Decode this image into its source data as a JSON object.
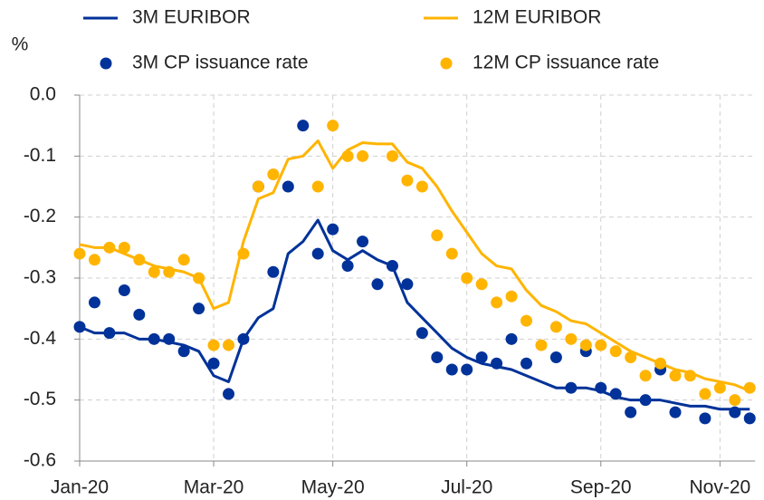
{
  "chart_data": {
    "type": "line",
    "ylabel": "%",
    "categories": [
      "Jan-20",
      null,
      null,
      null,
      null,
      null,
      null,
      null,
      null,
      "Mar-20",
      null,
      null,
      null,
      null,
      null,
      null,
      null,
      "May-20",
      null,
      null,
      null,
      null,
      null,
      null,
      null,
      null,
      "Jul-20",
      null,
      null,
      null,
      null,
      null,
      null,
      null,
      null,
      "Sep-20",
      null,
      null,
      null,
      null,
      null,
      null,
      null,
      "Nov-20",
      null,
      null
    ],
    "ylim": [
      -0.6,
      0
    ],
    "yticks": [
      {
        "value": 0,
        "label": "0.0"
      },
      -0.1,
      -0.2,
      -0.3,
      -0.4,
      -0.5,
      -0.6
    ],
    "grid": true,
    "series": [
      {
        "name": "3M EURIBOR",
        "type": "line",
        "color": "#003299",
        "values": [
          -0.38,
          -0.39,
          -0.39,
          -0.39,
          -0.4,
          -0.4,
          -0.405,
          -0.41,
          -0.42,
          -0.46,
          -0.47,
          -0.4,
          -0.365,
          -0.35,
          -0.26,
          -0.24,
          -0.205,
          -0.255,
          -0.27,
          -0.255,
          -0.27,
          -0.28,
          -0.34,
          -0.365,
          -0.39,
          -0.415,
          -0.43,
          -0.44,
          -0.445,
          -0.45,
          -0.46,
          -0.47,
          -0.48,
          -0.48,
          -0.48,
          -0.485,
          -0.495,
          -0.5,
          -0.5,
          -0.5,
          -0.505,
          -0.51,
          -0.51,
          -0.515,
          -0.515,
          -0.515
        ]
      },
      {
        "name": "12M EURIBOR",
        "type": "line",
        "color": "#ffb400",
        "values": [
          -0.245,
          -0.25,
          -0.25,
          -0.26,
          -0.27,
          -0.28,
          -0.285,
          -0.29,
          -0.3,
          -0.35,
          -0.34,
          -0.24,
          -0.17,
          -0.16,
          -0.105,
          -0.1,
          -0.075,
          -0.12,
          -0.09,
          -0.078,
          -0.08,
          -0.08,
          -0.11,
          -0.12,
          -0.15,
          -0.19,
          -0.225,
          -0.26,
          -0.28,
          -0.285,
          -0.32,
          -0.345,
          -0.355,
          -0.37,
          -0.375,
          -0.39,
          -0.405,
          -0.42,
          -0.43,
          -0.44,
          -0.45,
          -0.455,
          -0.465,
          -0.47,
          -0.475,
          -0.485
        ]
      },
      {
        "name": "3M CP issuance rate",
        "type": "scatter",
        "color": "#003299",
        "values": [
          -0.38,
          -0.34,
          -0.39,
          -0.32,
          -0.36,
          -0.4,
          -0.4,
          -0.42,
          -0.35,
          -0.44,
          -0.49,
          -0.4,
          -0.15,
          -0.29,
          -0.15,
          -0.05,
          -0.26,
          -0.22,
          -0.28,
          -0.24,
          -0.31,
          -0.28,
          -0.31,
          -0.39,
          -0.43,
          -0.45,
          -0.45,
          -0.43,
          -0.44,
          -0.4,
          -0.44,
          null,
          -0.43,
          -0.48,
          -0.42,
          -0.48,
          -0.49,
          -0.52,
          -0.5,
          -0.45,
          -0.52,
          null,
          -0.53,
          null,
          -0.52,
          -0.53
        ]
      },
      {
        "name": "12M CP issuance rate",
        "type": "scatter",
        "color": "#ffb400",
        "values": [
          -0.26,
          -0.27,
          -0.25,
          -0.25,
          -0.27,
          -0.29,
          -0.29,
          -0.27,
          -0.3,
          -0.41,
          -0.41,
          -0.26,
          -0.15,
          -0.13,
          null,
          null,
          -0.15,
          -0.05,
          -0.1,
          -0.1,
          null,
          -0.1,
          -0.14,
          -0.15,
          -0.23,
          -0.26,
          -0.3,
          -0.31,
          -0.34,
          -0.33,
          -0.37,
          -0.41,
          -0.38,
          -0.4,
          -0.41,
          -0.41,
          -0.42,
          -0.43,
          -0.46,
          -0.44,
          -0.46,
          -0.46,
          -0.49,
          -0.48,
          -0.5,
          -0.48
        ]
      }
    ]
  }
}
